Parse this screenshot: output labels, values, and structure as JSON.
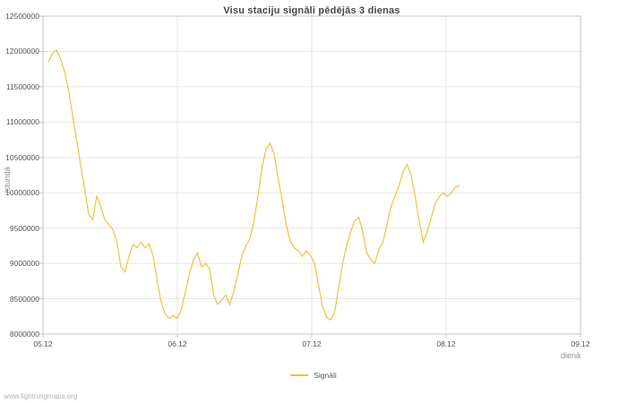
{
  "page": {
    "watermark": "www.lightningmaps.org"
  },
  "chart_data": {
    "type": "line",
    "title": "Visu staciju signāli pēdējās 3 dienas",
    "xlabel": "dienā",
    "ylabel": "/stundā",
    "legend_position": "bottom-center",
    "grid": true,
    "xlim": [
      5,
      9
    ],
    "ylim": [
      8000000,
      12500000
    ],
    "x_ticks": {
      "values": [
        5,
        6,
        7,
        8,
        9
      ],
      "labels": [
        "05.12",
        "06.12",
        "07.12",
        "08.12",
        "09.12"
      ]
    },
    "y_ticks": [
      8000000,
      8500000,
      9000000,
      9500000,
      10000000,
      10500000,
      11000000,
      11500000,
      12000000,
      12500000
    ],
    "colors": {
      "series": "#edc240",
      "grid": "#e6e6e6",
      "border": "#c3c3c3",
      "tick_text": "#545454"
    },
    "series": [
      {
        "name": "Signāli",
        "color": "#edc240",
        "x": [
          5.04,
          5.07,
          5.1,
          5.13,
          5.16,
          5.19,
          5.22,
          5.25,
          5.28,
          5.31,
          5.34,
          5.37,
          5.4,
          5.43,
          5.46,
          5.49,
          5.52,
          5.55,
          5.58,
          5.61,
          5.64,
          5.67,
          5.7,
          5.73,
          5.76,
          5.79,
          5.82,
          5.85,
          5.88,
          5.91,
          5.94,
          5.97,
          6.0,
          6.03,
          6.06,
          6.09,
          6.12,
          6.15,
          6.18,
          6.21,
          6.24,
          6.27,
          6.3,
          6.33,
          6.36,
          6.39,
          6.42,
          6.45,
          6.48,
          6.51,
          6.54,
          6.57,
          6.6,
          6.63,
          6.66,
          6.69,
          6.72,
          6.75,
          6.78,
          6.81,
          6.84,
          6.87,
          6.9,
          6.93,
          6.96,
          6.99,
          7.02,
          7.05,
          7.08,
          7.11,
          7.14,
          7.17,
          7.2,
          7.23,
          7.26,
          7.29,
          7.32,
          7.35,
          7.38,
          7.41,
          7.44,
          7.47,
          7.5,
          7.53,
          7.56,
          7.59,
          7.62,
          7.65,
          7.68,
          7.71,
          7.74,
          7.77,
          7.8,
          7.83,
          7.86,
          7.89,
          7.92,
          7.95,
          7.98,
          8.01,
          8.04,
          8.07,
          8.1
        ],
        "y": [
          11850000,
          11970000,
          12020000,
          11900000,
          11720000,
          11450000,
          11100000,
          10750000,
          10400000,
          10050000,
          9700000,
          9620000,
          9950000,
          9800000,
          9620000,
          9550000,
          9480000,
          9300000,
          8950000,
          8880000,
          9100000,
          9270000,
          9220000,
          9300000,
          9220000,
          9280000,
          9100000,
          8750000,
          8450000,
          8280000,
          8220000,
          8260000,
          8220000,
          8350000,
          8600000,
          8850000,
          9050000,
          9150000,
          8950000,
          9000000,
          8920000,
          8550000,
          8420000,
          8480000,
          8550000,
          8420000,
          8600000,
          8850000,
          9100000,
          9250000,
          9350000,
          9600000,
          9950000,
          10350000,
          10620000,
          10700000,
          10550000,
          10200000,
          9900000,
          9550000,
          9320000,
          9220000,
          9180000,
          9100000,
          9180000,
          9120000,
          9000000,
          8700000,
          8400000,
          8240000,
          8200000,
          8300000,
          8650000,
          9000000,
          9250000,
          9450000,
          9600000,
          9650000,
          9450000,
          9150000,
          9050000,
          9000000,
          9200000,
          9300000,
          9550000,
          9800000,
          9950000,
          10100000,
          10300000,
          10400000,
          10250000,
          9950000,
          9600000,
          9300000,
          9450000,
          9650000,
          9850000,
          9950000,
          10000000,
          9950000,
          10000000,
          10080000,
          10100000
        ]
      }
    ]
  }
}
